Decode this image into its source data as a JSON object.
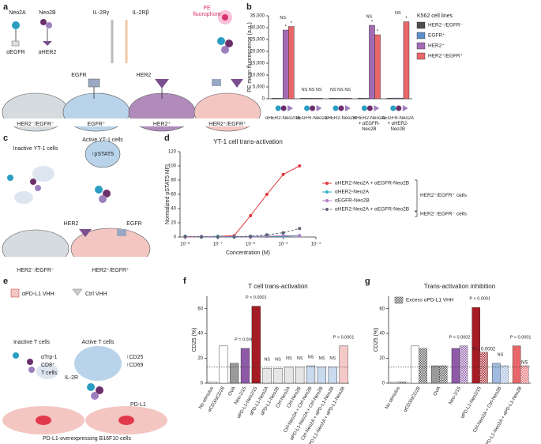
{
  "panel_labels": [
    "a",
    "b",
    "c",
    "d",
    "e",
    "f",
    "g"
  ],
  "diagram_a": {
    "neo2a": "Neo2A",
    "neo2b": "Neo2B",
    "aegfr": "αEGFR",
    "aher2": "αHER2",
    "il2rg": "IL-2Rγ",
    "il2rb": "IL-2Rβ",
    "pe_line1": "PE",
    "pe_line2": "fluorophore",
    "egfr": "EGFR",
    "her2": "HER2",
    "cells": [
      "HER2⁻/EGFR⁻",
      "EGFR⁺",
      "HER2⁺",
      "HER2⁺/EGFR⁺"
    ]
  },
  "diagram_c": {
    "inactive": "Inactive YT-1 cells",
    "active": "Active YT-1 cells",
    "pstat5": "↑pSTAT5",
    "her2": "HER2",
    "egfr": "EGFR",
    "cells": [
      "HER2⁻/EGFR⁻",
      "HER2⁺/EGFR⁺"
    ]
  },
  "diagram_e": {
    "pdl1_vhh": "αPD-L1 VHH",
    "ctrl_vhh": "Ctrl VHH",
    "inactive": "Inactive T cells",
    "active": "Active T cells",
    "trp1": [
      "αTrp-1",
      "CD8⁺",
      "T cells"
    ],
    "cd25": "↑CD25",
    "cd69": "↑CD69",
    "il2r": "IL-2R",
    "pdl1": "PD-L1",
    "cells": "PD-L1-overexpressing B16F10 cells"
  },
  "chart_data": [
    {
      "type": "bar",
      "y_label": "PE mean fluorescence (a.u.)",
      "legend_title": "K562 cell lines",
      "categories": [
        "αHER2-Neo2/15",
        "αEGFR-Neo2A",
        "αHER2-Neo2B",
        "αHER2-Neo2A + αEGFR-Neo2B",
        "αEGFR-Neo2A + αHER2-Neo2B"
      ],
      "series": [
        {
          "name": "HER2⁻/EGFR⁻",
          "color": "#4d4d4d",
          "values": [
            200,
            200,
            200,
            200,
            200
          ]
        },
        {
          "name": "EGFR⁺",
          "color": "#5b8fc9",
          "values": [
            200,
            200,
            200,
            200,
            300
          ]
        },
        {
          "name": "HER2⁺",
          "color": "#a46bb5",
          "values": [
            29000,
            200,
            200,
            31000,
            300
          ],
          "labels": [
            "*",
            null,
            null,
            "*",
            null
          ]
        },
        {
          "name": "HER2⁺/EGFR⁺",
          "color": "#e8676b",
          "values": [
            30500,
            200,
            200,
            27000,
            32500
          ],
          "labels": [
            "*",
            null,
            null,
            "*",
            "*"
          ]
        }
      ],
      "group_labels": [
        "NS",
        "NS NS NS",
        "NS NS NS",
        "NS",
        "NS"
      ],
      "ylim": [
        0,
        35000
      ],
      "yticks": [
        0,
        {
          "value": 5000,
          "label": "5,000"
        },
        {
          "value": 10000,
          "label": "10,000"
        },
        {
          "value": 15000,
          "label": "15,000"
        },
        {
          "value": 20000,
          "label": "20,000"
        },
        {
          "value": 25000,
          "label": "25,000"
        },
        {
          "value": 30000,
          "label": "30,000"
        },
        {
          "value": 35000,
          "label": "35,000"
        }
      ]
    },
    {
      "type": "line",
      "title": "YT-1 cell trans-activation",
      "x_label": "Concentration (M)",
      "y_label": "Normalized pSTAT5 MFI",
      "xscale": "log",
      "x": [
        1e-08,
        3.16e-08,
        1e-07,
        3.16e-07,
        1e-06,
        3.16e-06,
        1e-05,
        3.16e-05
      ],
      "series": [
        {
          "name": "αHER2-Neo2A + αEGFR-Neo2B",
          "color": "#e0393e",
          "line_style": "solid",
          "values": [
            0,
            0,
            1,
            2,
            30,
            60,
            88,
            100
          ]
        },
        {
          "name": "αHER2-Neo2A",
          "color": "#2bb3c0",
          "line_style": "solid",
          "values": [
            1,
            0,
            1,
            0,
            1,
            1,
            1,
            2
          ]
        },
        {
          "name": "αEGFR-Neo2B",
          "color": "#b07cc6",
          "line_style": "solid",
          "values": [
            0,
            1,
            0,
            1,
            0,
            1,
            2,
            2
          ]
        },
        {
          "name": "αHER2-Neo2A + αEGFR-Neo2B",
          "color": "#5a6270",
          "line_style": "dashed",
          "values": [
            1,
            0,
            0,
            0,
            1,
            3,
            6,
            12
          ]
        }
      ],
      "brackets": [
        "HER2⁺/EGFR⁺ cells",
        "HER2⁻/EGFR⁻ cells"
      ],
      "xlim": [
        7e-09,
        0.0001
      ],
      "xticks": [
        {
          "value": 1e-08,
          "label": "10⁻⁸"
        },
        {
          "value": 1e-07,
          "label": "10⁻⁷"
        },
        {
          "value": 1e-06,
          "label": "10⁻⁶"
        },
        {
          "value": 1e-05,
          "label": "10⁻⁵"
        },
        {
          "value": 0.0001,
          "label": "10⁻⁴"
        }
      ],
      "ylim": [
        0,
        120
      ],
      "yticks": [
        0,
        20,
        40,
        60,
        80,
        100,
        120
      ]
    },
    {
      "type": "bar",
      "title": "T cell trans-activation",
      "y_label": "CD25 (%)",
      "categories": [
        "No stimulus",
        "αCD3/αCD28",
        "OVA",
        "Neo-2/15",
        "αPD-L1-Neo2/15",
        "αPD-L1-Neo2A",
        "αPD-L1-Neo2B",
        "Ctrl-Neo2A",
        "Ctrl-Neo2B",
        "Ctrl-Neo2A + Ctrl-Neo2B",
        "αPD-L1-Neo2A + Ctrl-Neo2B",
        "Ctrl-Neo2A + αPD-L1-Neo2B",
        "αPD-L1-Neo2A + αPD-L1-Neo2B"
      ],
      "series": [
        {
          "colors": [
            "#ffffff",
            "#ffffff",
            "#9a9a9a",
            "#8e5aa8",
            "#a51c24",
            "#e6e6e6",
            "#e6e6e6",
            "#e6e6e6",
            "#e6e6e6",
            "#c9d9ee",
            "#c9d9ee",
            "#c9d9ee",
            "#f6c9c9"
          ],
          "values": [
            1,
            30,
            16,
            28,
            62,
            12,
            12,
            13,
            13,
            14,
            13,
            13,
            30
          ]
        }
      ],
      "group_labels": [
        null,
        null,
        null,
        "P = 0.0002",
        "P < 0.0001",
        "NS",
        "NS",
        "NS",
        "NS",
        "NS",
        "NS",
        "NS",
        "P < 0.0001"
      ],
      "reference_line": 13,
      "ylim": [
        0,
        70
      ],
      "yticks": [
        0,
        20,
        40,
        60
      ]
    },
    {
      "type": "bar",
      "title": "Trans-activation inhibition",
      "y_label": "CD25 (%)",
      "categories": [
        "No stimulus",
        "αCD3/αCD28",
        "OVA",
        "Neo-2/15",
        "αPD-L1-Neo2/15",
        "Ctrl-Neo2A + Ctrl-Neo2B",
        "αPD-L1-Neo2A + αPD-L1-Neo2B"
      ],
      "series": [
        {
          "colors": [
            "#ffffff",
            "#ffffff",
            "#9a9a9a",
            "#8e5aa8",
            "#a51c24",
            "#9fbbe0",
            "#e8676b"
          ],
          "values": [
            1,
            30,
            14,
            28,
            61,
            16,
            30
          ]
        },
        {
          "name": "Excess αPD-L1 VHH",
          "pattern": "hatch",
          "colors": [
            "#555555",
            "#555555",
            "#555555",
            "#8e5aa8",
            "#a51c24",
            "#9fbbe0",
            "#e8676b"
          ],
          "values": [
            1,
            28,
            14,
            30,
            25,
            14,
            14
          ],
          "labels": [
            null,
            null,
            null,
            null,
            "P = 0.0002",
            null,
            "NS"
          ]
        }
      ],
      "group_labels": [
        null,
        null,
        null,
        "P = 0.0002",
        "P < 0.0001",
        "NS",
        "P < 0.0001"
      ],
      "reference_line": 13,
      "ylim": [
        0,
        70
      ],
      "yticks": [
        0,
        20,
        40,
        60
      ]
    }
  ]
}
